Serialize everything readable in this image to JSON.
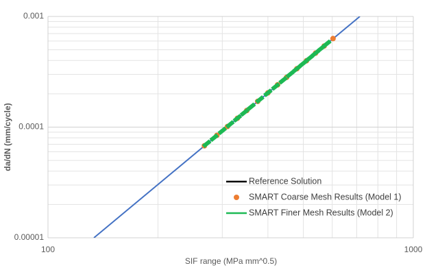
{
  "chart_data": {
    "type": "scatter",
    "x_label": "SIF range (MPa mm^0.5)",
    "y_label": "da/dN (mm/cycle)",
    "x_log": true,
    "y_log": true,
    "grid": true,
    "minor_grid": true,
    "legend_position": "lower right",
    "xlim": [
      100,
      1000
    ],
    "xticks": [
      100,
      1000
    ],
    "ylim": [
      1e-05,
      0.001
    ],
    "yticks": [
      1e-05,
      0.0001,
      0.001
    ],
    "series": [
      {
        "name": "Reference Solution",
        "kind": "line",
        "color": "#4472c4",
        "x": [
          133.6,
          714
        ],
        "values": [
          1e-05,
          0.001
        ]
      },
      {
        "name": "SMART Coarse Mesh Results (Model 1)",
        "kind": "marker",
        "color": "#ed7d31",
        "x": [
          268,
          290,
          310,
          330,
          350,
          375,
          400,
          425,
          450,
          480,
          510,
          540,
          570,
          603
        ],
        "values": [
          6.78e-05,
          8.43e-05,
          0.0001013,
          0.0001202,
          0.0001413,
          0.0001709,
          0.000204,
          0.000241,
          0.000282,
          0.000337,
          0.000398,
          0.000466,
          0.00054,
          0.000631
        ]
      },
      {
        "name": "SMART Finer Mesh Results (Model 2)",
        "kind": "dash",
        "color": "#1db954",
        "x": [
          272,
          285,
          300,
          315,
          330,
          345,
          360,
          380,
          400,
          420,
          440,
          460,
          480,
          500,
          520,
          540,
          560,
          580
        ],
        "values": [
          7.07e-05,
          8.03e-05,
          9.25e-05,
          0.0001058,
          0.0001202,
          0.0001358,
          0.0001527,
          0.0001772,
          0.000204,
          0.000233,
          0.000265,
          0.0003,
          0.000337,
          0.000377,
          0.00042,
          0.000466,
          0.000515,
          0.000567
        ]
      }
    ]
  }
}
